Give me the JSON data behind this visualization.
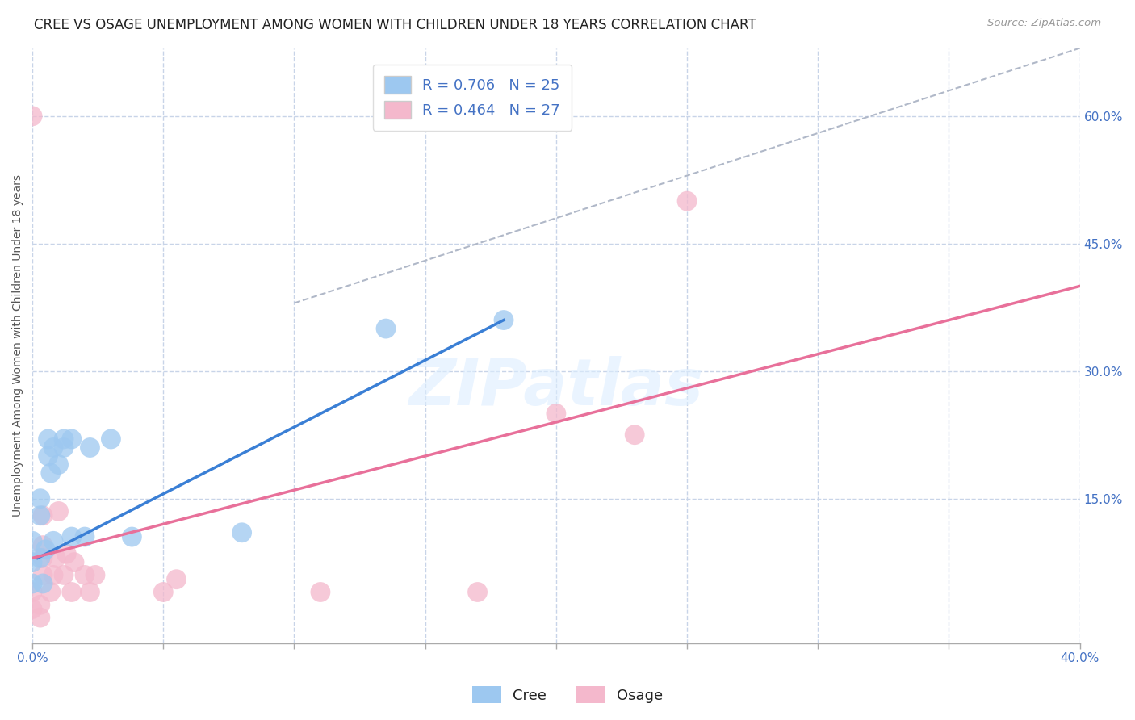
{
  "title": "CREE VS OSAGE UNEMPLOYMENT AMONG WOMEN WITH CHILDREN UNDER 18 YEARS CORRELATION CHART",
  "source": "Source: ZipAtlas.com",
  "ylabel": "Unemployment Among Women with Children Under 18 years",
  "xlim": [
    0.0,
    0.4
  ],
  "ylim": [
    -0.02,
    0.68
  ],
  "xtick_positions": [
    0.0,
    0.05,
    0.1,
    0.15,
    0.2,
    0.25,
    0.3,
    0.35,
    0.4
  ],
  "xtick_labels": [
    "0.0%",
    "",
    "",
    "",
    "",
    "",
    "",
    "",
    "40.0%"
  ],
  "yticks_right": [
    0.15,
    0.3,
    0.45,
    0.6
  ],
  "ytick_labels_right": [
    "15.0%",
    "30.0%",
    "45.0%",
    "60.0%"
  ],
  "cree_color": "#9dc8f0",
  "osage_color": "#f4b8cc",
  "cree_line_color": "#3a7fd5",
  "osage_line_color": "#e8709a",
  "cree_R": 0.706,
  "cree_N": 25,
  "osage_R": 0.464,
  "osage_N": 27,
  "cree_points": [
    [
      0.0,
      0.05
    ],
    [
      0.0,
      0.075
    ],
    [
      0.0,
      0.1
    ],
    [
      0.003,
      0.08
    ],
    [
      0.003,
      0.13
    ],
    [
      0.003,
      0.15
    ],
    [
      0.004,
      0.05
    ],
    [
      0.005,
      0.09
    ],
    [
      0.006,
      0.2
    ],
    [
      0.006,
      0.22
    ],
    [
      0.007,
      0.18
    ],
    [
      0.008,
      0.21
    ],
    [
      0.008,
      0.1
    ],
    [
      0.01,
      0.19
    ],
    [
      0.012,
      0.21
    ],
    [
      0.012,
      0.22
    ],
    [
      0.015,
      0.22
    ],
    [
      0.015,
      0.105
    ],
    [
      0.02,
      0.105
    ],
    [
      0.022,
      0.21
    ],
    [
      0.03,
      0.22
    ],
    [
      0.038,
      0.105
    ],
    [
      0.08,
      0.11
    ],
    [
      0.135,
      0.35
    ],
    [
      0.18,
      0.36
    ]
  ],
  "osage_points": [
    [
      0.0,
      0.02
    ],
    [
      0.0,
      0.04
    ],
    [
      0.0,
      0.6
    ],
    [
      0.003,
      0.01
    ],
    [
      0.003,
      0.025
    ],
    [
      0.004,
      0.06
    ],
    [
      0.004,
      0.08
    ],
    [
      0.004,
      0.095
    ],
    [
      0.004,
      0.13
    ],
    [
      0.007,
      0.04
    ],
    [
      0.008,
      0.06
    ],
    [
      0.009,
      0.08
    ],
    [
      0.01,
      0.135
    ],
    [
      0.012,
      0.06
    ],
    [
      0.013,
      0.085
    ],
    [
      0.015,
      0.04
    ],
    [
      0.016,
      0.075
    ],
    [
      0.02,
      0.06
    ],
    [
      0.022,
      0.04
    ],
    [
      0.024,
      0.06
    ],
    [
      0.05,
      0.04
    ],
    [
      0.055,
      0.055
    ],
    [
      0.11,
      0.04
    ],
    [
      0.2,
      0.25
    ],
    [
      0.23,
      0.225
    ],
    [
      0.25,
      0.5
    ],
    [
      0.17,
      0.04
    ]
  ],
  "cree_line_x": [
    0.002,
    0.18
  ],
  "cree_line_y": [
    0.08,
    0.36
  ],
  "osage_line_x": [
    0.0,
    0.4
  ],
  "osage_line_y": [
    0.08,
    0.4
  ],
  "diag_line_x": [
    0.1,
    0.4
  ],
  "diag_line_y": [
    0.38,
    0.68
  ],
  "background_color": "#ffffff",
  "grid_color": "#c8d4e8",
  "watermark_text": "ZIPatlas",
  "title_fontsize": 12,
  "axis_label_fontsize": 10,
  "tick_fontsize": 11,
  "legend_fontsize": 13
}
